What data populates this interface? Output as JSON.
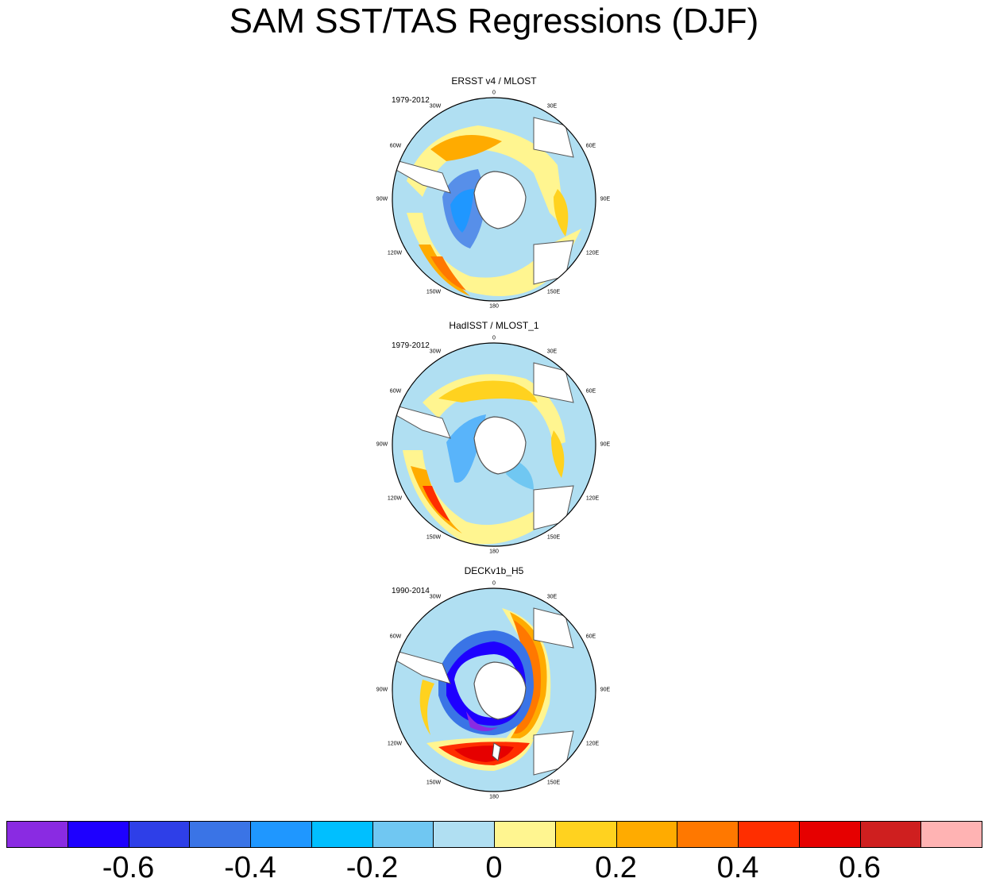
{
  "title": "SAM SST/TAS Regressions (DJF)",
  "panels": [
    {
      "name": "ERSST v4 / MLOST",
      "period": "1979-2012"
    },
    {
      "name": "HadISST / MLOST_1",
      "period": "1979-2012"
    },
    {
      "name": "DECKv1b_H5",
      "period": "1990-2014"
    }
  ],
  "lon_labels": [
    "0",
    "30E",
    "60E",
    "90E",
    "120E",
    "150E",
    "180",
    "150W",
    "120W",
    "90W",
    "60W",
    "30W"
  ],
  "colorbar": {
    "colors": [
      "#8a2be2",
      "#1e00ff",
      "#2e3fe8",
      "#3a74e6",
      "#1f97ff",
      "#00bfff",
      "#70c7f2",
      "#b0dff2",
      "#fff590",
      "#ffd21f",
      "#ffab00",
      "#ff7800",
      "#ff2e00",
      "#e60000",
      "#cf1f1f",
      "#ffb3b3"
    ],
    "tick_labels": [
      "-0.6",
      "-0.4",
      "-0.2",
      "0",
      "0.2",
      "0.4",
      "0.6"
    ],
    "tick_values": [
      -0.6,
      -0.4,
      -0.2,
      0,
      0.2,
      0.4,
      0.6
    ],
    "levels": [
      -0.7,
      -0.6,
      -0.5,
      -0.4,
      -0.3,
      -0.2,
      -0.1,
      0,
      0.1,
      0.2,
      0.3,
      0.4,
      0.5,
      0.6,
      0.7
    ]
  },
  "chart_data": {
    "type": "heatmap",
    "title": "SAM SST/TAS Regressions (DJF)",
    "projection": "south polar stereographic",
    "panels": [
      "ERSST v4 / MLOST",
      "HadISST / MLOST_1",
      "DECKv1b_H5"
    ],
    "colorbar_range": [
      -0.8,
      0.8
    ]
  }
}
